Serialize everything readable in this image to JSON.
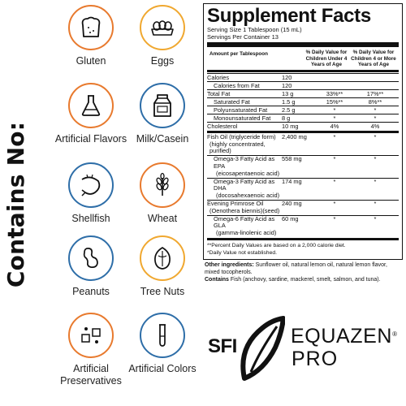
{
  "contains_label": "Contains No:",
  "allergens": [
    {
      "label": "Gluten",
      "icon": "bread-slice-icon",
      "color": "#e87a2e"
    },
    {
      "label": "Eggs",
      "icon": "eggs-carton-icon",
      "color": "#f0a830"
    },
    {
      "label": "Artificial Flavors",
      "icon": "flask-icon",
      "color": "#e87a2e"
    },
    {
      "label": "Milk/Casein",
      "icon": "milk-carton-icon",
      "color": "#2e6ea8"
    },
    {
      "label": "Shellfish",
      "icon": "shrimp-icon",
      "color": "#2e6ea8"
    },
    {
      "label": "Wheat",
      "icon": "wheat-icon",
      "color": "#e87a2e"
    },
    {
      "label": "Peanuts",
      "icon": "peanut-icon",
      "color": "#2e6ea8"
    },
    {
      "label": "Tree Nuts",
      "icon": "tree-nut-icon",
      "color": "#f0a830"
    },
    {
      "label": "Artificial Preservatives",
      "icon": "preservatives-icon",
      "color": "#e87a2e"
    },
    {
      "label": "Artificial Colors",
      "icon": "test-tube-icon",
      "color": "#2e6ea8"
    }
  ],
  "facts": {
    "title": "Supplement Facts",
    "serving_size": "Serving Size 1 Tablespoon (15 mL)",
    "servings_per_container": "Servings Per Container 13",
    "col_amount": "Amount per Tablespoon",
    "col_dv_under4": "% Daily Value for Children Under 4 Years of Age",
    "col_dv_over4": "% Daily Value for Children 4 or More Years of Age",
    "rows": [
      {
        "name": "Calories",
        "amount": "120",
        "dv1": "",
        "dv2": ""
      },
      {
        "name": "Calories from Fat",
        "amount": "120",
        "dv1": "",
        "dv2": ""
      },
      {
        "name": "Total Fat",
        "amount": "13 g",
        "dv1": "33%**",
        "dv2": "17%**"
      },
      {
        "name": "Saturated Fat",
        "amount": "1.5 g",
        "dv1": "15%**",
        "dv2": "8%**"
      },
      {
        "name": "Polyunsaturated Fat",
        "amount": "2.5 g",
        "dv1": "*",
        "dv2": "*"
      },
      {
        "name": "Monounsaturated Fat",
        "amount": "8 g",
        "dv1": "*",
        "dv2": "*"
      },
      {
        "name": "Cholesterol",
        "amount": "10 mg",
        "dv1": "4%",
        "dv2": "4%"
      },
      {
        "name": "Fish Oil (triglyceride form)",
        "sub": "(highly concentrated, purified)",
        "amount": "2,400 mg",
        "dv1": "*",
        "dv2": "*"
      },
      {
        "name": "Omega-3 Fatty Acid as EPA",
        "sub": "(eicosapentaenoic acid)",
        "amount": "558 mg",
        "dv1": "*",
        "dv2": "*"
      },
      {
        "name": "Omega-3 Fatty Acid as DHA",
        "sub": "(docosahexaenoic acid)",
        "amount": "174 mg",
        "dv1": "*",
        "dv2": "*"
      },
      {
        "name": "Evening Primrose Oil",
        "sub": "(Oenothera biennis)(seed)",
        "amount": "240 mg",
        "dv1": "*",
        "dv2": "*"
      },
      {
        "name": "Omega-6 Fatty Acid as GLA",
        "sub": "(gamma-linolenic acid)",
        "amount": "60 mg",
        "dv1": "*",
        "dv2": "*"
      }
    ],
    "footnote1": "**Percent Daily Values are based on a 2,000 calorie diet.",
    "footnote2": "*Daily Value not established."
  },
  "other": {
    "ingredients_label": "Other ingredients:",
    "ingredients_text": "Sunflower oil, natural lemon oil, natural lemon flavor, mixed tocopherols.",
    "contains_label": "Contains",
    "contains_text": "Fish (anchovy, sardine, mackerel, smelt, salmon, and tuna)."
  },
  "logos": {
    "sfi": "SFI",
    "brand_line1": "EQUAZEN",
    "registered": "®",
    "brand_line2": "PRO"
  }
}
